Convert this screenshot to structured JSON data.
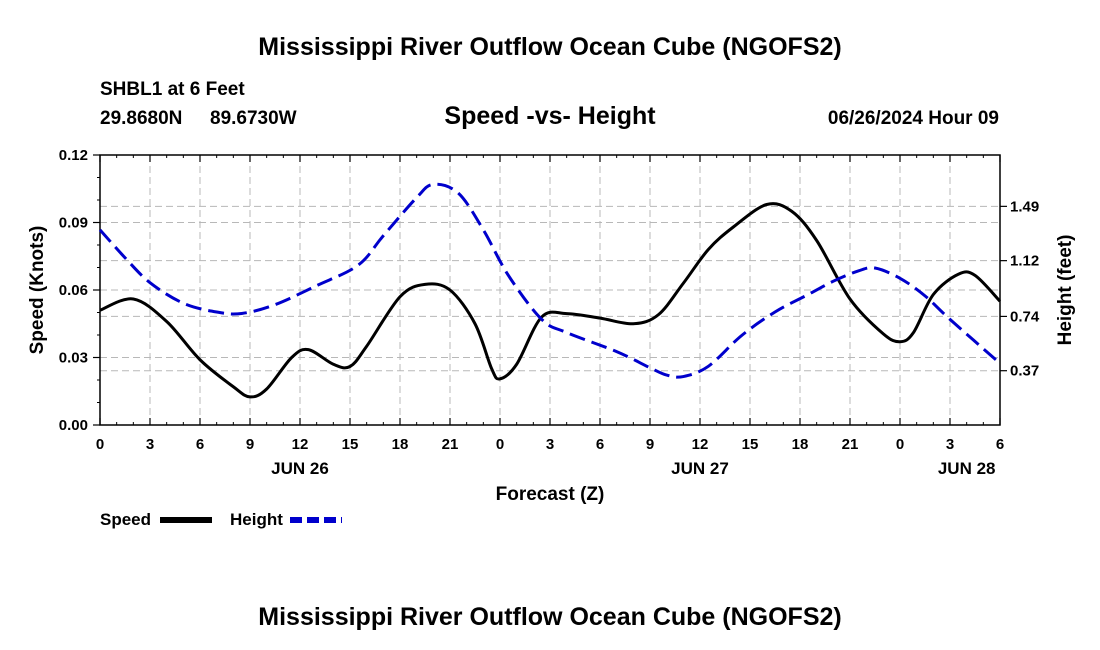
{
  "page_title": "Mississippi River Outflow Ocean Cube (NGOFS2)",
  "footer_title": "Mississippi River Outflow Ocean Cube (NGOFS2)",
  "station": {
    "line1": "SHBL1 at 6 Feet",
    "lat": "29.8680N",
    "lon": "89.6730W",
    "datetime": "06/26/2024 Hour 09"
  },
  "chart_data": {
    "type": "line",
    "title": "Speed -vs- Height",
    "xlabel": "Forecast (Z)",
    "ylabel_left": "Speed (Knots)",
    "ylabel_right": "Height (feet)",
    "x_range_hours": [
      0,
      54
    ],
    "y_left_range": [
      0,
      0.12
    ],
    "y_right_range": [
      0,
      1.84
    ],
    "x_ticks": [
      {
        "h": 0,
        "label": "0"
      },
      {
        "h": 3,
        "label": "3"
      },
      {
        "h": 6,
        "label": "6"
      },
      {
        "h": 9,
        "label": "9"
      },
      {
        "h": 12,
        "label": "12"
      },
      {
        "h": 15,
        "label": "15"
      },
      {
        "h": 18,
        "label": "18"
      },
      {
        "h": 21,
        "label": "21"
      },
      {
        "h": 24,
        "label": "0"
      },
      {
        "h": 27,
        "label": "3"
      },
      {
        "h": 30,
        "label": "6"
      },
      {
        "h": 33,
        "label": "9"
      },
      {
        "h": 36,
        "label": "12"
      },
      {
        "h": 39,
        "label": "15"
      },
      {
        "h": 42,
        "label": "18"
      },
      {
        "h": 45,
        "label": "21"
      },
      {
        "h": 48,
        "label": "0"
      },
      {
        "h": 51,
        "label": "3"
      },
      {
        "h": 54,
        "label": "6"
      }
    ],
    "date_labels": [
      {
        "h": 12,
        "label": "JUN 26"
      },
      {
        "h": 36,
        "label": "JUN 27"
      },
      {
        "h": 52,
        "label": "JUN 28"
      }
    ],
    "y_left_ticks": [
      {
        "v": 0.0,
        "label": "0.00"
      },
      {
        "v": 0.03,
        "label": "0.03"
      },
      {
        "v": 0.06,
        "label": "0.06"
      },
      {
        "v": 0.09,
        "label": "0.09"
      },
      {
        "v": 0.12,
        "label": "0.12"
      }
    ],
    "y_right_ticks": [
      {
        "v": 0.37,
        "label": "0.37"
      },
      {
        "v": 0.74,
        "label": "0.74"
      },
      {
        "v": 1.12,
        "label": "1.12"
      },
      {
        "v": 1.49,
        "label": "1.49"
      }
    ],
    "series": [
      {
        "name": "Speed",
        "axis": "left",
        "color": "#000000",
        "dashed": false,
        "points": [
          [
            0,
            0.051
          ],
          [
            2,
            0.056
          ],
          [
            4,
            0.046
          ],
          [
            6,
            0.029
          ],
          [
            8,
            0.017
          ],
          [
            9,
            0.0125
          ],
          [
            10,
            0.016
          ],
          [
            11.5,
            0.03
          ],
          [
            12.5,
            0.0335
          ],
          [
            14,
            0.027
          ],
          [
            15,
            0.026
          ],
          [
            16,
            0.035
          ],
          [
            18,
            0.057
          ],
          [
            19.5,
            0.0625
          ],
          [
            21,
            0.06
          ],
          [
            22.5,
            0.045
          ],
          [
            23.5,
            0.025
          ],
          [
            24,
            0.0205
          ],
          [
            25,
            0.027
          ],
          [
            26.5,
            0.048
          ],
          [
            28,
            0.0495
          ],
          [
            30,
            0.0475
          ],
          [
            32,
            0.045
          ],
          [
            33.5,
            0.049
          ],
          [
            35,
            0.063
          ],
          [
            36.5,
            0.078
          ],
          [
            38,
            0.088
          ],
          [
            40,
            0.098
          ],
          [
            41.5,
            0.095
          ],
          [
            43,
            0.082
          ],
          [
            45,
            0.056
          ],
          [
            47,
            0.0405
          ],
          [
            48,
            0.037
          ],
          [
            48.8,
            0.041
          ],
          [
            50,
            0.058
          ],
          [
            51.5,
            0.067
          ],
          [
            52.5,
            0.0665
          ],
          [
            54,
            0.055
          ]
        ]
      },
      {
        "name": "Height",
        "axis": "right",
        "color": "#0000cc",
        "dashed": true,
        "points": [
          [
            0,
            1.33
          ],
          [
            1.5,
            1.14
          ],
          [
            3,
            0.97
          ],
          [
            5,
            0.83
          ],
          [
            7,
            0.77
          ],
          [
            8.5,
            0.76
          ],
          [
            10.5,
            0.82
          ],
          [
            13,
            0.95
          ],
          [
            15.5,
            1.09
          ],
          [
            17,
            1.29
          ],
          [
            19,
            1.55
          ],
          [
            20,
            1.64
          ],
          [
            21.5,
            1.58
          ],
          [
            23,
            1.33
          ],
          [
            24.5,
            1.02
          ],
          [
            26.5,
            0.72
          ],
          [
            28,
            0.63
          ],
          [
            31,
            0.5
          ],
          [
            33,
            0.39
          ],
          [
            34,
            0.34
          ],
          [
            35,
            0.33
          ],
          [
            36.5,
            0.4
          ],
          [
            38.5,
            0.61
          ],
          [
            40.5,
            0.77
          ],
          [
            42.5,
            0.89
          ],
          [
            44,
            0.98
          ],
          [
            45.5,
            1.05
          ],
          [
            46.5,
            1.07
          ],
          [
            48,
            1.0
          ],
          [
            49.5,
            0.88
          ],
          [
            51,
            0.72
          ],
          [
            54,
            0.42
          ]
        ]
      }
    ],
    "legend": [
      {
        "label": "Speed",
        "color": "#000000",
        "dashed": false
      },
      {
        "label": "Height",
        "color": "#0000cc",
        "dashed": true
      }
    ]
  }
}
